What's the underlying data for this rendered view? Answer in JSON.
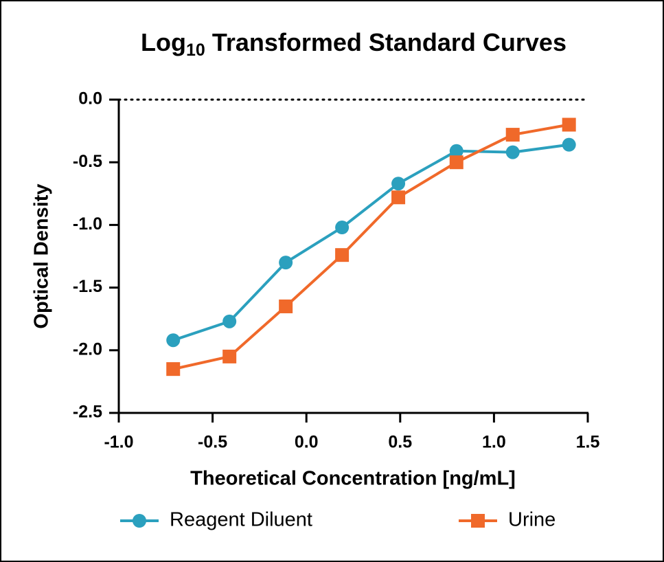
{
  "chart_data": {
    "type": "line",
    "title": [
      "Log",
      "10",
      " Transformed Standard Curves"
    ],
    "x_label": "Theoretical Concentration [ng/mL]",
    "y_label": "Optical Density",
    "x": [
      -0.71,
      -0.41,
      -0.11,
      0.19,
      0.49,
      0.8,
      1.1,
      1.4
    ],
    "series": [
      {
        "name": "Reagent Diluent",
        "color": "#2ba0be",
        "marker": "circle",
        "values": [
          -1.92,
          -1.77,
          -1.3,
          -1.02,
          -0.67,
          -0.41,
          -0.42,
          -0.36
        ]
      },
      {
        "name": "Urine",
        "color": "#f0692a",
        "marker": "square",
        "values": [
          -2.15,
          -2.05,
          -1.65,
          -1.24,
          -0.78,
          -0.5,
          -0.28,
          -0.2
        ]
      }
    ],
    "xlim": [
      -1.0,
      1.5
    ],
    "ylim": [
      -2.5,
      0.0
    ],
    "xticks": [
      {
        "value": -1.0,
        "label": "-1.0"
      },
      {
        "value": -0.5,
        "label": "-0.5"
      },
      {
        "value": 0.0,
        "label": "0.0"
      },
      {
        "value": 0.5,
        "label": "0.5"
      },
      {
        "value": 1.0,
        "label": "1.0"
      },
      {
        "value": 1.5,
        "label": "1.5"
      }
    ],
    "yticks": [
      {
        "value": 0.0,
        "label": "0.0"
      },
      {
        "value": -0.5,
        "label": "-0.5"
      },
      {
        "value": -1.0,
        "label": "-1.0"
      },
      {
        "value": -1.5,
        "label": "-1.5"
      },
      {
        "value": -2.0,
        "label": "-2.0"
      },
      {
        "value": -2.5,
        "label": "-2.5"
      }
    ],
    "zero_line": true,
    "legend": "bottom"
  }
}
